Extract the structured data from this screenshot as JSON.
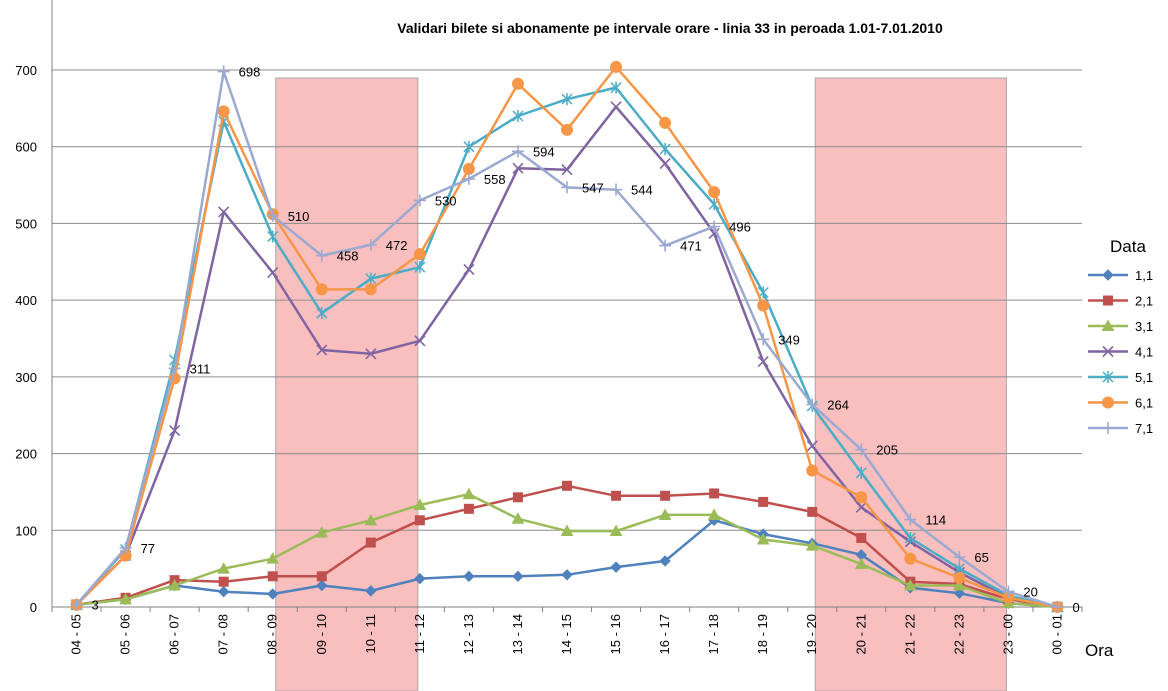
{
  "chart_data": {
    "type": "line",
    "title": "Validari bilete si abonamente pe intervale orare - linia 33 in peroada 1.01-7.01.2010",
    "xlabel": "Ora",
    "ylabel": "",
    "ylim": [
      0,
      700
    ],
    "yticks": [
      0,
      100,
      200,
      300,
      400,
      500,
      600,
      700
    ],
    "grid": true,
    "legend_title": "Data",
    "legend_position": "right",
    "categories": [
      "04 - 05",
      "05 - 06",
      "06 - 07",
      "07 - 08",
      "08 - 09",
      "09 - 10",
      "10 - 11",
      "11 - 12",
      "12 - 13",
      "13 - 14",
      "14 - 15",
      "15 - 16",
      "16 - 17",
      "17 - 18",
      "18 - 19",
      "19 - 20",
      "20 - 21",
      "21 - 22",
      "22 - 23",
      "23 - 00",
      "00 - 01"
    ],
    "highlight_bands": [
      {
        "from": "08 - 09",
        "to": "11 - 12",
        "color": "#f9b8b8"
      },
      {
        "from": "19 - 20",
        "to": "23 - 00",
        "color": "#f9b8b8"
      }
    ],
    "series": [
      {
        "name": "1,1",
        "color": "#4f81bd",
        "marker": "diamond",
        "values": [
          3,
          10,
          28,
          20,
          17,
          28,
          21,
          37,
          40,
          40,
          42,
          52,
          60,
          113,
          95,
          83,
          68,
          25,
          18,
          5,
          0
        ]
      },
      {
        "name": "2,1",
        "color": "#c0504d",
        "marker": "square",
        "values": [
          3,
          12,
          35,
          33,
          40,
          40,
          84,
          113,
          128,
          143,
          158,
          145,
          145,
          148,
          137,
          124,
          90,
          33,
          30,
          10,
          0
        ]
      },
      {
        "name": "3,1",
        "color": "#9bbb59",
        "marker": "triangle",
        "values": [
          3,
          10,
          28,
          50,
          63,
          97,
          113,
          133,
          147,
          115,
          99,
          99,
          120,
          120,
          88,
          80,
          56,
          28,
          28,
          5,
          0
        ]
      },
      {
        "name": "4,1",
        "color": "#8064a2",
        "marker": "x",
        "values": [
          3,
          67,
          230,
          515,
          436,
          335,
          330,
          347,
          440,
          572,
          570,
          652,
          578,
          487,
          320,
          210,
          130,
          85,
          45,
          12,
          0
        ]
      },
      {
        "name": "5,1",
        "color": "#4bacc6",
        "marker": "star",
        "values": [
          3,
          75,
          322,
          633,
          483,
          383,
          428,
          443,
          600,
          640,
          662,
          677,
          597,
          525,
          410,
          262,
          175,
          90,
          50,
          15,
          0
        ]
      },
      {
        "name": "6,1",
        "color": "#f79646",
        "marker": "circle",
        "values": [
          3,
          67,
          298,
          646,
          512,
          414,
          414,
          460,
          571,
          682,
          622,
          704,
          631,
          541,
          393,
          178,
          143,
          63,
          38,
          12,
          0
        ]
      },
      {
        "name": "7,1",
        "color": "#9ba9d1",
        "marker": "plus",
        "values": [
          3,
          77,
          311,
          698,
          510,
          458,
          472,
          530,
          558,
          594,
          547,
          544,
          471,
          496,
          349,
          264,
          205,
          114,
          65,
          20,
          0
        ]
      }
    ],
    "data_labels": {
      "series": "7,1",
      "labels": [
        "3",
        "77",
        "311",
        "698",
        "510",
        "458",
        "472",
        "530",
        "558",
        "594",
        "547",
        "544",
        "471",
        "496",
        "349",
        "264",
        "205",
        "114",
        "65",
        "20",
        "0"
      ]
    }
  }
}
